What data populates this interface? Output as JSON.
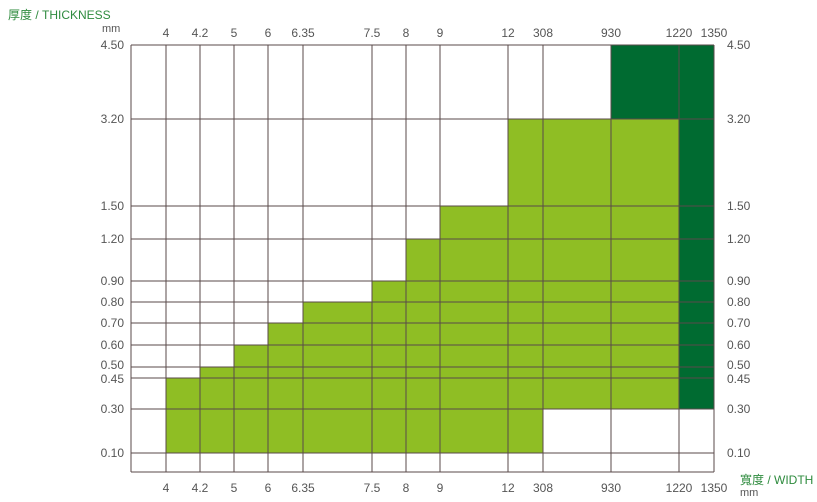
{
  "chart_data": {
    "type": "heatmap",
    "title": "",
    "ylabel": "厚度 / THICKNESS",
    "yunit": "mm",
    "xlabel": "寬度 / WIDTH",
    "xunit": "mm",
    "x_ticks": [
      "4",
      "4.2",
      "5",
      "6",
      "6.35",
      "7.5",
      "8",
      "9",
      "12",
      "308",
      "930",
      "1220",
      "1350"
    ],
    "y_ticks": [
      "4.50",
      "3.20",
      "1.50",
      "1.20",
      "0.90",
      "0.80",
      "0.70",
      "0.60",
      "0.50",
      "0.45",
      "0.30",
      "0.10"
    ],
    "colors": {
      "light_green": "#8fbe24",
      "dark_green": "#006b31",
      "grid": "#5a4a4a",
      "axis_title": "#2e8b3e",
      "tick": "#555555"
    },
    "series": [
      {
        "color_key": "light_green",
        "columns": [
          {
            "x_from": "4",
            "x_to": "4.2",
            "y_from": "0.10",
            "y_to": "0.45"
          },
          {
            "x_from": "4.2",
            "x_to": "5",
            "y_from": "0.10",
            "y_to": "0.50"
          },
          {
            "x_from": "5",
            "x_to": "6",
            "y_from": "0.10",
            "y_to": "0.60"
          },
          {
            "x_from": "6",
            "x_to": "6.35",
            "y_from": "0.10",
            "y_to": "0.70"
          },
          {
            "x_from": "6.35",
            "x_to": "7.5",
            "y_from": "0.10",
            "y_to": "0.80"
          },
          {
            "x_from": "7.5",
            "x_to": "8",
            "y_from": "0.10",
            "y_to": "0.90"
          },
          {
            "x_from": "8",
            "x_to": "9",
            "y_from": "0.10",
            "y_to": "1.20"
          },
          {
            "x_from": "9",
            "x_to": "12",
            "y_from": "0.10",
            "y_to": "1.50"
          },
          {
            "x_from": "12",
            "x_to": "308",
            "y_from": "0.10",
            "y_to": "3.20"
          },
          {
            "x_from": "308",
            "x_to": "930",
            "y_from": "0.30",
            "y_to": "3.20"
          },
          {
            "x_from": "930",
            "x_to": "1220",
            "y_from": "0.30",
            "y_to": "3.20"
          }
        ]
      },
      {
        "color_key": "dark_green",
        "columns": [
          {
            "x_from": "930",
            "x_to": "1220",
            "y_from": "3.20",
            "y_to": "4.50"
          },
          {
            "x_from": "1220",
            "x_to": "1350",
            "y_from": "0.30",
            "y_to": "4.50"
          }
        ]
      }
    ]
  }
}
